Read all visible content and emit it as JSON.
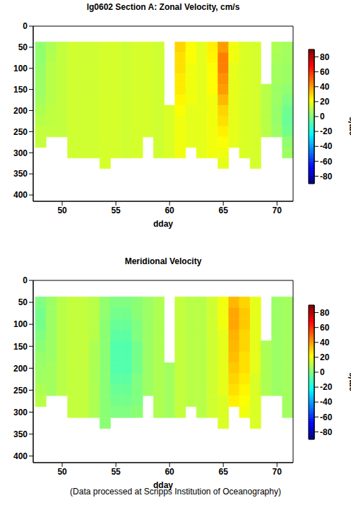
{
  "footer": "(Data processed at Scripps Institution of Oceanography)",
  "chart_data": [
    {
      "type": "heatmap",
      "title": "lg0602 Section A: Zonal Velocity, cm/s",
      "x_label": "dday",
      "xlim": [
        47.3,
        71.5
      ],
      "xticks": [
        50,
        55,
        60,
        65,
        70
      ],
      "ylim": [
        0,
        415
      ],
      "yticks": [
        0,
        50,
        100,
        150,
        200,
        250,
        300,
        350,
        400
      ],
      "x_bins": [
        47.5,
        48.5,
        49.5,
        50.5,
        51.5,
        52.5,
        53.5,
        54.5,
        55.5,
        56.5,
        57.5,
        58.5,
        59.5,
        60.5,
        61.5,
        62.5,
        63.5,
        64.5,
        65.5,
        66.5,
        67.5,
        68.5,
        69.5,
        70.5,
        71.5
      ],
      "depth_bins": [
        37.5,
        62.5,
        87.5,
        112.5,
        137.5,
        162.5,
        187.5,
        212.5,
        237.5,
        262.5,
        287.5,
        312.5,
        337.5
      ],
      "cells": [
        [
          3,
          3,
          4,
          5,
          5,
          6,
          8,
          10,
          12,
          12,
          null,
          null
        ],
        [
          8,
          9,
          10,
          10,
          10,
          10,
          11,
          11,
          12,
          null,
          null,
          null
        ],
        [
          12,
          12,
          12,
          12,
          12,
          12,
          12,
          12,
          12,
          null,
          null,
          null
        ],
        [
          14,
          14,
          14,
          14,
          14,
          14,
          14,
          14,
          14,
          14,
          14,
          null
        ],
        [
          14,
          14,
          14,
          14,
          14,
          14,
          14,
          14,
          14,
          14,
          14,
          null
        ],
        [
          14,
          14,
          14,
          14,
          14,
          14,
          14,
          14,
          14,
          14,
          14,
          null
        ],
        [
          15,
          15,
          15,
          15,
          15,
          15,
          15,
          15,
          15,
          15,
          15,
          15
        ],
        [
          15,
          15,
          15,
          15,
          15,
          15,
          15,
          15,
          15,
          15,
          15,
          null
        ],
        [
          14,
          14,
          14,
          14,
          14,
          14,
          14,
          14,
          14,
          14,
          14,
          null
        ],
        [
          15,
          15,
          15,
          15,
          15,
          15,
          15,
          15,
          15,
          15,
          15,
          null
        ],
        [
          15,
          15,
          15,
          15,
          15,
          15,
          15,
          15,
          15,
          null,
          null,
          null
        ],
        [
          14,
          14,
          14,
          14,
          14,
          14,
          14,
          14,
          14,
          14,
          14,
          null
        ],
        [
          null,
          null,
          null,
          null,
          null,
          null,
          16,
          16,
          16,
          16,
          16,
          null
        ],
        [
          30,
          28,
          28,
          26,
          26,
          24,
          22,
          20,
          20,
          20,
          20,
          null
        ],
        [
          22,
          22,
          20,
          20,
          20,
          20,
          18,
          18,
          18,
          18,
          null,
          null
        ],
        [
          18,
          18,
          18,
          18,
          18,
          18,
          18,
          18,
          18,
          18,
          18,
          null
        ],
        [
          25,
          24,
          22,
          22,
          22,
          20,
          20,
          20,
          20,
          20,
          20,
          null
        ],
        [
          40,
          45,
          45,
          42,
          40,
          35,
          30,
          28,
          25,
          22,
          20,
          18
        ],
        [
          20,
          20,
          18,
          18,
          18,
          18,
          18,
          18,
          18,
          18,
          null,
          null
        ],
        [
          16,
          16,
          16,
          16,
          16,
          16,
          16,
          16,
          16,
          16,
          16,
          null
        ],
        [
          15,
          15,
          15,
          15,
          15,
          15,
          15,
          15,
          15,
          15,
          15,
          15
        ],
        [
          null,
          null,
          null,
          null,
          10,
          10,
          10,
          10,
          10,
          null,
          null,
          null
        ],
        [
          8,
          7,
          6,
          6,
          5,
          5,
          4,
          4,
          5,
          null,
          null,
          null
        ],
        [
          6,
          6,
          5,
          5,
          3,
          0,
          -3,
          -4,
          -2,
          3,
          5,
          null
        ]
      ],
      "colorbar": {
        "label": "cm/s",
        "range": [
          -90,
          90
        ],
        "ticks": [
          -80,
          -60,
          -40,
          -20,
          0,
          20,
          40,
          60,
          80
        ]
      }
    },
    {
      "type": "heatmap",
      "title": "Meridional Velocity",
      "x_label": "dday",
      "xlim": [
        47.3,
        71.5
      ],
      "xticks": [
        50,
        55,
        60,
        65,
        70
      ],
      "ylim": [
        0,
        415
      ],
      "yticks": [
        0,
        50,
        100,
        150,
        200,
        250,
        300,
        350,
        400
      ],
      "x_bins": [
        47.5,
        48.5,
        49.5,
        50.5,
        51.5,
        52.5,
        53.5,
        54.5,
        55.5,
        56.5,
        57.5,
        58.5,
        59.5,
        60.5,
        61.5,
        62.5,
        63.5,
        64.5,
        65.5,
        66.5,
        67.5,
        68.5,
        69.5,
        70.5,
        71.5
      ],
      "depth_bins": [
        37.5,
        62.5,
        87.5,
        112.5,
        137.5,
        162.5,
        187.5,
        212.5,
        237.5,
        262.5,
        287.5,
        312.5,
        337.5
      ],
      "cells": [
        [
          0,
          -2,
          -2,
          0,
          2,
          4,
          5,
          6,
          8,
          10,
          null,
          null
        ],
        [
          5,
          5,
          5,
          5,
          5,
          5,
          6,
          6,
          6,
          null,
          null,
          null
        ],
        [
          10,
          10,
          10,
          10,
          10,
          10,
          10,
          10,
          10,
          null,
          null,
          null
        ],
        [
          12,
          12,
          12,
          12,
          12,
          12,
          12,
          12,
          12,
          12,
          12,
          null
        ],
        [
          12,
          12,
          12,
          12,
          12,
          12,
          12,
          12,
          12,
          12,
          12,
          null
        ],
        [
          10,
          10,
          10,
          10,
          8,
          8,
          8,
          8,
          8,
          8,
          8,
          null
        ],
        [
          3,
          3,
          2,
          2,
          2,
          2,
          2,
          2,
          2,
          2,
          2,
          2
        ],
        [
          0,
          -2,
          -4,
          -6,
          -8,
          -8,
          -8,
          -6,
          -4,
          -2,
          0,
          null
        ],
        [
          0,
          -2,
          -4,
          -6,
          -8,
          -8,
          -8,
          -6,
          -4,
          -2,
          0,
          null
        ],
        [
          2,
          2,
          0,
          0,
          -2,
          -2,
          -2,
          0,
          0,
          0,
          2,
          null
        ],
        [
          5,
          5,
          5,
          5,
          5,
          5,
          5,
          5,
          5,
          null,
          null,
          null
        ],
        [
          8,
          8,
          8,
          8,
          8,
          8,
          8,
          8,
          8,
          8,
          8,
          null
        ],
        [
          null,
          null,
          null,
          null,
          null,
          null,
          6,
          6,
          6,
          6,
          6,
          null
        ],
        [
          12,
          12,
          12,
          12,
          12,
          12,
          12,
          12,
          12,
          12,
          12,
          null
        ],
        [
          10,
          10,
          10,
          10,
          10,
          10,
          10,
          10,
          10,
          10,
          null,
          null
        ],
        [
          10,
          10,
          10,
          10,
          10,
          10,
          10,
          10,
          10,
          10,
          10,
          null
        ],
        [
          14,
          14,
          14,
          14,
          14,
          14,
          14,
          14,
          14,
          14,
          14,
          null
        ],
        [
          20,
          20,
          20,
          18,
          18,
          18,
          18,
          18,
          18,
          16,
          16,
          16
        ],
        [
          35,
          38,
          38,
          36,
          35,
          34,
          32,
          30,
          28,
          25,
          null,
          null
        ],
        [
          30,
          32,
          32,
          30,
          30,
          28,
          28,
          26,
          24,
          22,
          20,
          null
        ],
        [
          18,
          18,
          18,
          18,
          18,
          18,
          18,
          16,
          16,
          16,
          16,
          16
        ],
        [
          null,
          null,
          null,
          null,
          8,
          8,
          8,
          8,
          8,
          null,
          null,
          null
        ],
        [
          5,
          5,
          5,
          5,
          5,
          5,
          5,
          5,
          5,
          null,
          null,
          null
        ],
        [
          6,
          6,
          6,
          6,
          6,
          6,
          6,
          6,
          6,
          6,
          6,
          null
        ]
      ],
      "colorbar": {
        "label": "cm/s",
        "range": [
          -90,
          90
        ],
        "ticks": [
          -80,
          -60,
          -40,
          -20,
          0,
          20,
          40,
          60,
          80
        ]
      }
    }
  ]
}
